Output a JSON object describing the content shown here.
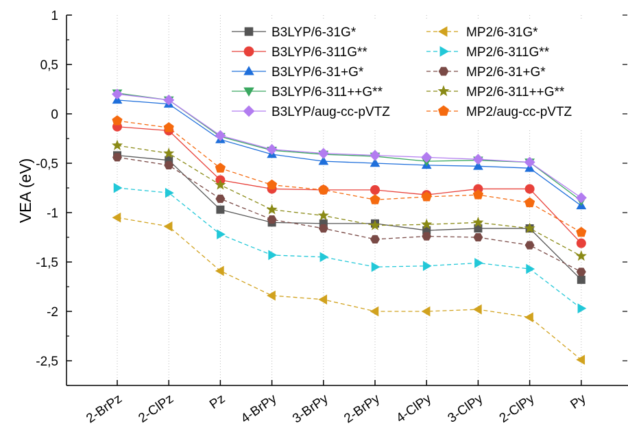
{
  "chart_data": {
    "type": "line",
    "title": "",
    "xlabel": "",
    "ylabel": "VEA (eV)",
    "ylim": [
      -2.75,
      1.0
    ],
    "yticks": [
      1,
      0.5,
      0,
      -0.5,
      -1,
      -1.5,
      -2,
      -2.5
    ],
    "ytick_labels": [
      "1",
      "0,5",
      "0",
      "-0,5",
      "-1",
      "-1,5",
      "-2",
      "-2,5"
    ],
    "categories": [
      "2-BrPz",
      "2-ClPz",
      "Pz",
      "4-BrPy",
      "3-BrPy",
      "2-BrPy",
      "4-ClPy",
      "3-ClPy",
      "2-ClPy",
      "Py"
    ],
    "grid": "vertical dotted",
    "legend_position": "top",
    "series": [
      {
        "name": "B3LYP/6-31G*",
        "color": "#555555",
        "marker": "square",
        "dash": "solid",
        "values": [
          -0.42,
          -0.47,
          -0.97,
          -1.1,
          -1.11,
          -1.11,
          -1.18,
          -1.16,
          -1.16,
          -1.68
        ]
      },
      {
        "name": "B3LYP/6-311G**",
        "color": "#e8413a",
        "marker": "circle",
        "dash": "solid",
        "values": [
          -0.13,
          -0.17,
          -0.67,
          -0.76,
          -0.77,
          -0.77,
          -0.82,
          -0.76,
          -0.76,
          -1.31
        ]
      },
      {
        "name": "B3LYP/6-31+G*",
        "color": "#1f6fdb",
        "marker": "triangle-up",
        "dash": "solid",
        "values": [
          0.14,
          0.1,
          -0.26,
          -0.41,
          -0.48,
          -0.5,
          -0.52,
          -0.53,
          -0.55,
          -0.93
        ]
      },
      {
        "name": "B3LYP/6-311++G**",
        "color": "#3aa860",
        "marker": "triangle-down",
        "dash": "solid",
        "values": [
          0.21,
          0.14,
          -0.23,
          -0.37,
          -0.41,
          -0.43,
          -0.48,
          -0.47,
          -0.49,
          -0.88
        ]
      },
      {
        "name": "B3LYP/aug-cc-pVTZ",
        "color": "#b27cf0",
        "marker": "diamond",
        "dash": "solid",
        "values": [
          0.2,
          0.14,
          -0.22,
          -0.36,
          -0.4,
          -0.42,
          -0.44,
          -0.46,
          -0.49,
          -0.85
        ]
      },
      {
        "name": "MP2/6-31G*",
        "color": "#d1a21e",
        "marker": "triangle-left",
        "dash": "dashed",
        "values": [
          -1.05,
          -1.14,
          -1.59,
          -1.84,
          -1.88,
          -2.0,
          -2.0,
          -1.98,
          -2.06,
          -2.49
        ]
      },
      {
        "name": "MP2/6-311G**",
        "color": "#22c8d8",
        "marker": "triangle-right",
        "dash": "dashed",
        "values": [
          -0.75,
          -0.8,
          -1.22,
          -1.43,
          -1.45,
          -1.55,
          -1.54,
          -1.51,
          -1.57,
          -1.97
        ]
      },
      {
        "name": "MP2/6-31+G*",
        "color": "#7a4a46",
        "marker": "hexagon",
        "dash": "dashed",
        "values": [
          -0.44,
          -0.52,
          -0.86,
          -1.07,
          -1.16,
          -1.27,
          -1.24,
          -1.25,
          -1.33,
          -1.6
        ]
      },
      {
        "name": "MP2/6-311++G**",
        "color": "#8a8a16",
        "marker": "star",
        "dash": "dashed",
        "values": [
          -0.32,
          -0.4,
          -0.72,
          -0.97,
          -1.03,
          -1.13,
          -1.12,
          -1.1,
          -1.16,
          -1.44
        ]
      },
      {
        "name": "MP2/aug-cc-pVTZ",
        "color": "#f56a0f",
        "marker": "pentagon",
        "dash": "dashed",
        "values": [
          -0.07,
          -0.14,
          -0.55,
          -0.72,
          -0.77,
          -0.87,
          -0.84,
          -0.82,
          -0.9,
          -1.2
        ]
      }
    ]
  }
}
